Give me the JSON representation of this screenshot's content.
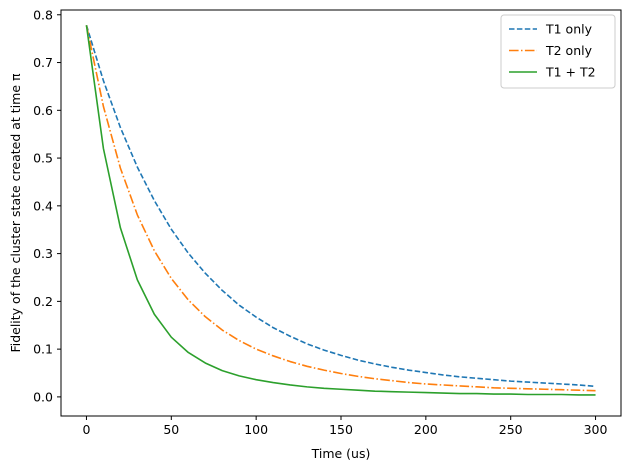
{
  "chart_data": {
    "type": "line",
    "title": "",
    "xlabel": "Time (us)",
    "ylabel": "Fidelity of the cluster state created at time π",
    "xlim": [
      -15,
      315
    ],
    "ylim": [
      -0.04,
      0.81
    ],
    "x_ticks": [
      0,
      50,
      100,
      150,
      200,
      250,
      300
    ],
    "x_tick_labels": [
      "0",
      "50",
      "100",
      "150",
      "200",
      "250",
      "300"
    ],
    "y_ticks": [
      0.0,
      0.1,
      0.2,
      0.3,
      0.4,
      0.5,
      0.6,
      0.7,
      0.8
    ],
    "y_tick_labels": [
      "0.0",
      "0.1",
      "0.2",
      "0.3",
      "0.4",
      "0.5",
      "0.6",
      "0.7",
      "0.8"
    ],
    "grid": false,
    "legend_position": "top-right",
    "x": [
      0,
      10,
      20,
      30,
      40,
      50,
      60,
      70,
      80,
      90,
      100,
      110,
      120,
      130,
      140,
      150,
      160,
      170,
      180,
      190,
      200,
      210,
      220,
      230,
      240,
      250,
      260,
      270,
      280,
      290,
      300
    ],
    "series": [
      {
        "name": "T1 only",
        "color": "#1f77b4",
        "dash": "dashed",
        "values": [
          0.778,
          0.662,
          0.564,
          0.481,
          0.411,
          0.351,
          0.301,
          0.259,
          0.223,
          0.192,
          0.167,
          0.145,
          0.127,
          0.111,
          0.098,
          0.087,
          0.077,
          0.069,
          0.062,
          0.056,
          0.051,
          0.046,
          0.042,
          0.039,
          0.036,
          0.033,
          0.031,
          0.029,
          0.027,
          0.025,
          0.022
        ]
      },
      {
        "name": "T2 only",
        "color": "#ff7f0e",
        "dash": "dashdot",
        "values": [
          0.778,
          0.608,
          0.479,
          0.381,
          0.306,
          0.248,
          0.203,
          0.168,
          0.14,
          0.118,
          0.1,
          0.086,
          0.074,
          0.064,
          0.056,
          0.049,
          0.043,
          0.038,
          0.034,
          0.03,
          0.027,
          0.025,
          0.023,
          0.021,
          0.019,
          0.018,
          0.017,
          0.016,
          0.015,
          0.014,
          0.013
        ]
      },
      {
        "name": "T1 + T2",
        "color": "#2ca02c",
        "dash": "solid",
        "values": [
          0.778,
          0.52,
          0.354,
          0.245,
          0.173,
          0.125,
          0.093,
          0.071,
          0.055,
          0.044,
          0.036,
          0.03,
          0.025,
          0.021,
          0.018,
          0.016,
          0.014,
          0.012,
          0.011,
          0.01,
          0.009,
          0.008,
          0.007,
          0.007,
          0.006,
          0.006,
          0.005,
          0.005,
          0.005,
          0.004,
          0.004
        ]
      }
    ]
  }
}
